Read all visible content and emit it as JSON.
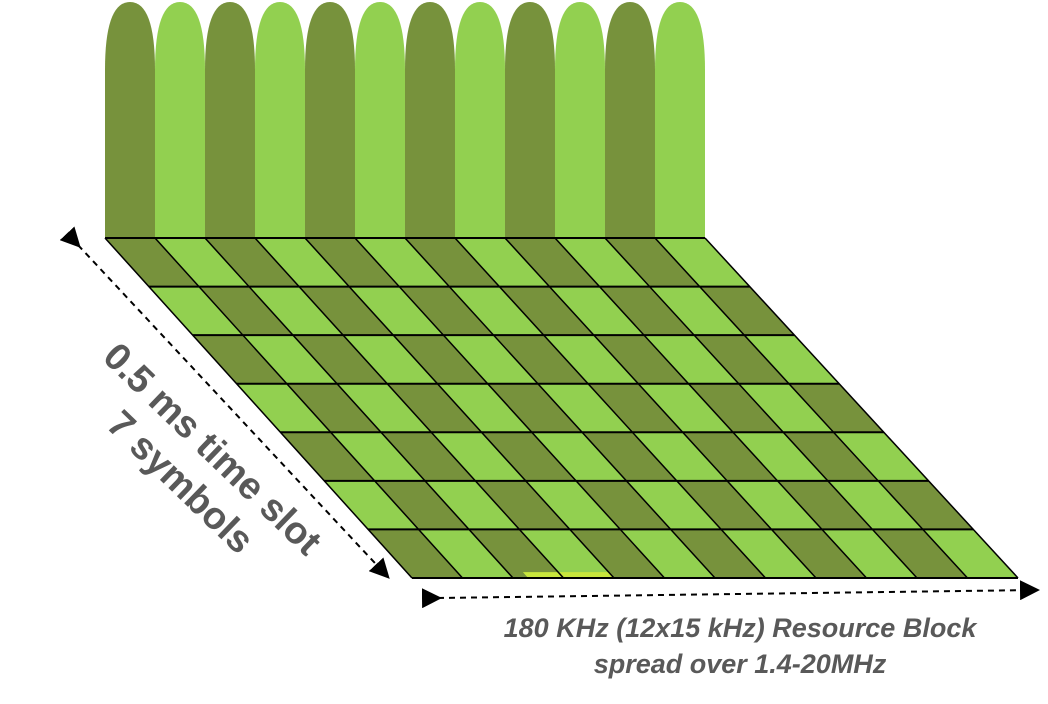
{
  "diagram": {
    "subcarriers": 12,
    "symbols": 7,
    "colors": {
      "dark": "#77923c",
      "light": "#92d050",
      "grid": "#000000",
      "arrow": "#000000",
      "text": "#595959",
      "highlight": "#c8e63c"
    },
    "frequency_label": {
      "line1": "180 KHz (12x15 kHz) Resource Block",
      "line2": "spread over 1.4-20MHz"
    },
    "time_label": {
      "line1": "0.5 ms time slot",
      "line2": "7 symbols"
    }
  }
}
